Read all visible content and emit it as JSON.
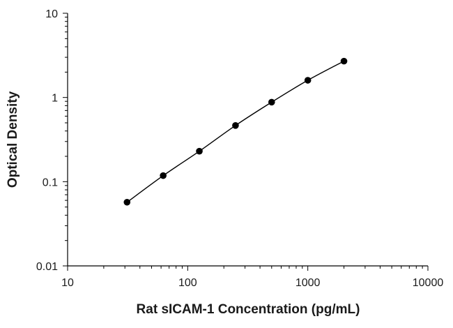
{
  "chart_data": {
    "type": "line",
    "title": "",
    "xlabel": "Rat sICAM-1 Concentration (pg/mL)",
    "ylabel": "Optical Density",
    "x_scale": "log",
    "y_scale": "log",
    "xlim": [
      10,
      10000
    ],
    "ylim": [
      0.01,
      10
    ],
    "x_ticks": [
      10,
      100,
      1000,
      10000
    ],
    "x_tick_labels": [
      "10",
      "100",
      "1000",
      "10000"
    ],
    "y_ticks": [
      0.01,
      0.1,
      1,
      10
    ],
    "y_tick_labels": [
      "0.01",
      "0.1",
      "1",
      "10"
    ],
    "grid": false,
    "legend": "none",
    "series": [
      {
        "x": [
          31.25,
          62.5,
          125,
          250,
          500,
          1000,
          2000
        ],
        "y": [
          0.057,
          0.118,
          0.23,
          0.465,
          0.88,
          1.6,
          2.7
        ],
        "marker": "circle",
        "color": "#000000"
      }
    ]
  }
}
